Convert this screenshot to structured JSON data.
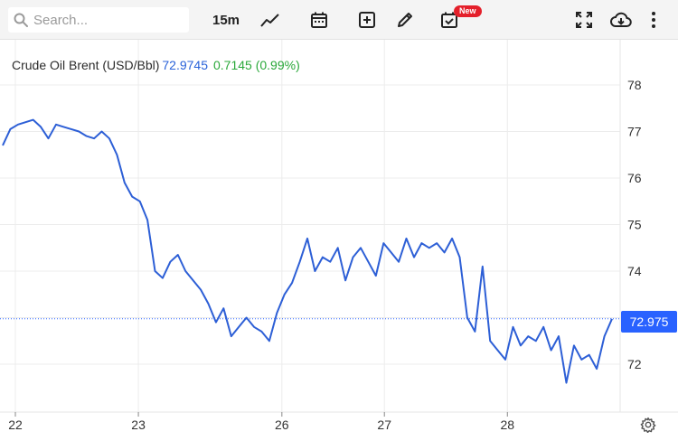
{
  "toolbar": {
    "search_placeholder": "Search...",
    "interval_label": "15m",
    "new_badge": "New",
    "icons": [
      "search-icon",
      "line-chart-icon",
      "calendar-icon",
      "add-icon",
      "pencil-icon",
      "calendar-check-icon",
      "fullscreen-icon",
      "cloud-download-icon",
      "more-vertical-icon"
    ]
  },
  "legend": {
    "name": "Crude Oil Brent (USD/Bbl)",
    "price": "72.9745",
    "change": "0.7145 (0.99%)"
  },
  "last_price_tag": "72.975",
  "colors": {
    "line": "#2d5fd6",
    "price_tag": "#2962ff",
    "change_up": "#2aa83a",
    "badge": "#e4202b"
  },
  "chart_data": {
    "type": "line",
    "title": "",
    "xlabel": "",
    "ylabel": "",
    "ylim": [
      71.3,
      78.9
    ],
    "yticks": [
      72,
      73,
      74,
      75,
      76,
      77,
      78
    ],
    "ytick_labels": [
      "72",
      "73",
      "74",
      "75",
      "76",
      "77",
      "78"
    ],
    "xtick_labels": [
      "22",
      "23",
      "26",
      "27",
      "28"
    ],
    "xtick_positions": [
      2,
      14,
      28,
      38,
      50
    ],
    "xlim": [
      0.5,
      61
    ],
    "last_value": 72.975,
    "grid": true,
    "series": [
      {
        "values": [
          76.7,
          77.05,
          77.15,
          77.2,
          77.25,
          77.1,
          76.85,
          77.15,
          77.1,
          77.05,
          77.0,
          76.9,
          76.85,
          77.0,
          76.85,
          76.5,
          75.9,
          75.6,
          75.5,
          75.1,
          74.0,
          73.85,
          74.2,
          74.35,
          74.0,
          73.8,
          73.6,
          73.3,
          72.9,
          73.2,
          72.6,
          72.8,
          73.0,
          72.8,
          72.7,
          72.5,
          73.1,
          73.5,
          73.75,
          74.2,
          74.7,
          74.0,
          74.3,
          74.2,
          74.5,
          73.8,
          74.3,
          74.5,
          74.2,
          73.9,
          74.6,
          74.4,
          74.2,
          74.7,
          74.3,
          74.6,
          74.5,
          74.6,
          74.4,
          74.7,
          74.3,
          73.0,
          72.7,
          74.1,
          72.5,
          72.3,
          72.1,
          72.8,
          72.4,
          72.6,
          72.5,
          72.8,
          72.3,
          72.6,
          71.6,
          72.4,
          72.1,
          72.2,
          71.9,
          72.6,
          72.975
        ]
      }
    ]
  }
}
